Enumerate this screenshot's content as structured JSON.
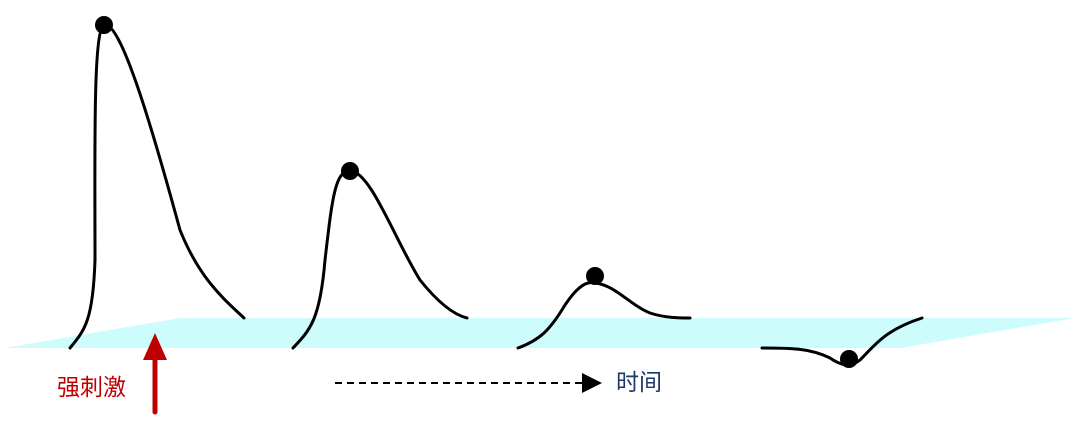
{
  "labels": {
    "stimulus": "强刺激",
    "time": "时间"
  },
  "colors": {
    "plane": "#ccfcfc",
    "stimulus": "#c00000",
    "time": "#1f3864",
    "curve": "#000000"
  },
  "responses": [
    {
      "peak_relative": 1.0
    },
    {
      "peak_relative": 0.55
    },
    {
      "peak_relative": 0.2
    },
    {
      "peak_relative": -0.04
    }
  ]
}
